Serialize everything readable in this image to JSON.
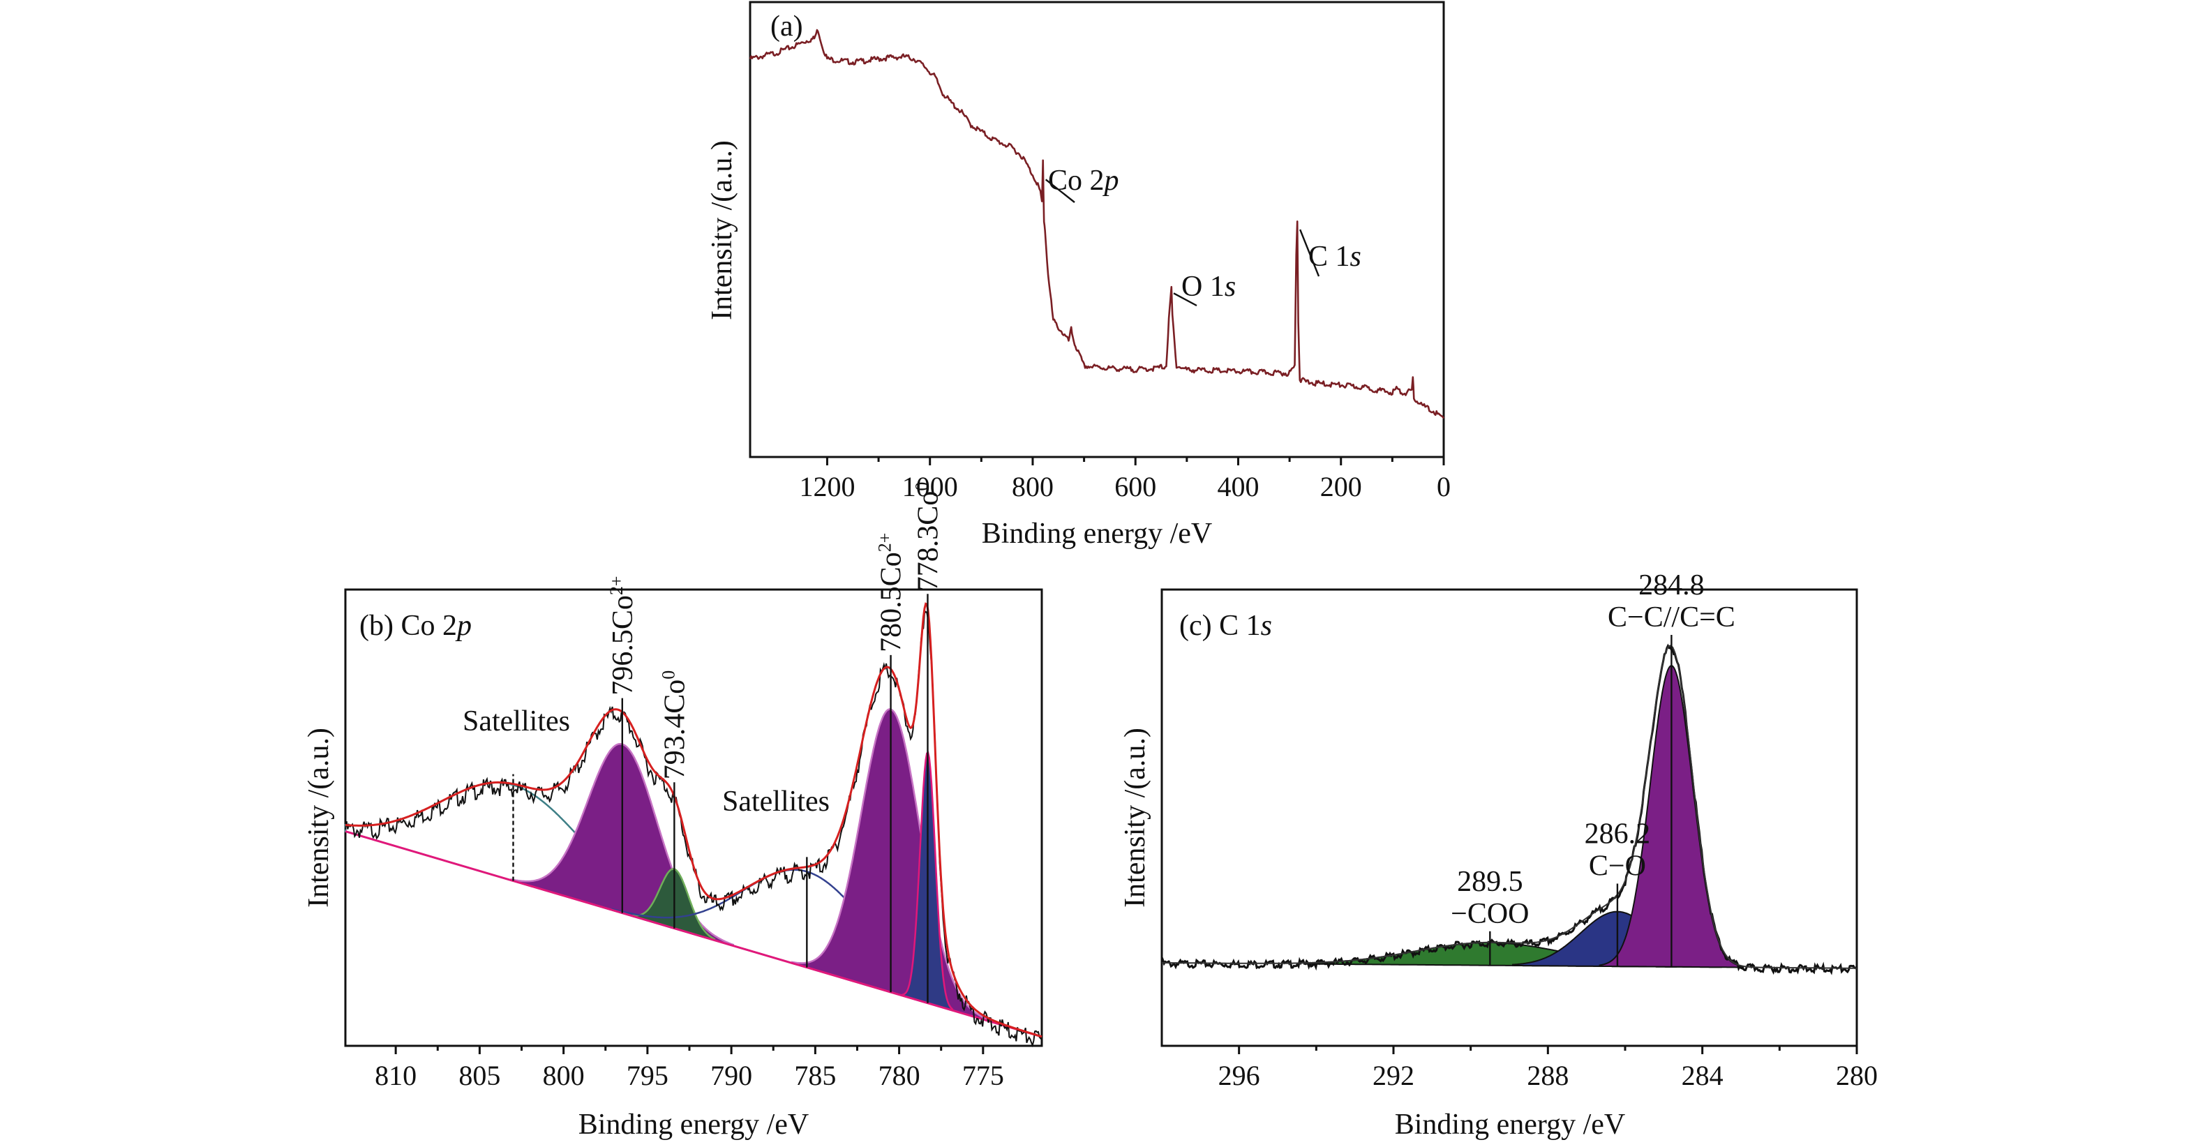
{
  "chart_data": [
    {
      "panel": "a",
      "type": "line",
      "tag": "(a)",
      "xlabel": "Binding energy /eV",
      "ylabel": "Intensity /(a.u.)",
      "xlim": [
        1350,
        0
      ],
      "ylim": [
        0,
        1
      ],
      "x_ticks": [
        1200,
        1000,
        800,
        600,
        400,
        200,
        0
      ],
      "y_ticks_labeled": false,
      "line_color": "#7a1f24",
      "series": [
        {
          "x": [
            1350,
            1300,
            1260,
            1240,
            1225,
            1218,
            1210,
            1200,
            1180,
            1150,
            1120,
            1080,
            1050,
            1030,
            1010,
            990,
            975,
            960,
            940,
            920,
            900,
            880,
            860,
            840,
            820,
            800,
            790,
            785,
            782,
            780,
            778,
            776,
            770,
            760,
            740,
            730,
            725,
            720,
            715,
            700,
            650,
            600,
            560,
            540,
            535,
            530,
            528,
            520,
            500,
            450,
            400,
            350,
            300,
            290,
            287,
            285,
            283,
            280,
            270,
            250,
            200,
            150,
            120,
            100,
            92,
            80,
            62,
            60,
            58,
            40,
            20,
            0
          ],
          "values": [
            0.875,
            0.888,
            0.905,
            0.915,
            0.92,
            0.94,
            0.905,
            0.875,
            0.872,
            0.868,
            0.872,
            0.878,
            0.88,
            0.875,
            0.858,
            0.835,
            0.8,
            0.78,
            0.76,
            0.73,
            0.715,
            0.7,
            0.69,
            0.68,
            0.66,
            0.62,
            0.6,
            0.58,
            0.56,
            0.65,
            0.52,
            0.5,
            0.4,
            0.3,
            0.27,
            0.255,
            0.28,
            0.255,
            0.24,
            0.2,
            0.195,
            0.192,
            0.195,
            0.2,
            0.3,
            0.37,
            0.31,
            0.2,
            0.192,
            0.19,
            0.188,
            0.186,
            0.184,
            0.2,
            0.45,
            0.52,
            0.3,
            0.17,
            0.166,
            0.162,
            0.158,
            0.152,
            0.145,
            0.142,
            0.15,
            0.14,
            0.145,
            0.17,
            0.13,
            0.112,
            0.1,
            0.085
          ]
        }
      ],
      "annotations": [
        {
          "text": "Co 2",
          "italic": "p",
          "x": 780
        },
        {
          "text": "O 1",
          "italic": "s",
          "x": 531
        },
        {
          "text": "C 1",
          "italic": "s",
          "x": 285
        }
      ]
    },
    {
      "panel": "b",
      "type": "area",
      "tag": "(b) Co 2",
      "tag_italic": "p",
      "xlabel": "Binding energy /eV",
      "ylabel": "Intensity /(a.u.)",
      "xlim": [
        813,
        771.5
      ],
      "ylim": [
        0,
        1
      ],
      "x_ticks": [
        810,
        805,
        800,
        795,
        790,
        785,
        780,
        775
      ],
      "y_ticks_labeled": false,
      "background": {
        "type": "linear",
        "start": [
          813,
          0.47
        ],
        "end": [
          771.5,
          0.02
        ],
        "color": "#e0187a"
      },
      "envelope_color": "#d62020",
      "raw_color": "#111111",
      "components": [
        {
          "name": "Satellites",
          "center": 803.0,
          "height": 0.21,
          "width": 4.3,
          "fill": "none",
          "stroke": "#3e7f86"
        },
        {
          "name": "796.5Co2+",
          "center": 796.5,
          "height": 0.37,
          "width": 2.05,
          "fill": "#7b1f86",
          "stroke": "#c774c4"
        },
        {
          "name": "793.4Co0",
          "center": 793.4,
          "height": 0.13,
          "width": 0.85,
          "fill": "#2d5a3c",
          "stroke": "#6fae5a"
        },
        {
          "name": "Satellites",
          "center": 785.5,
          "height": 0.21,
          "width": 3.8,
          "fill": "none",
          "stroke": "#33418f"
        },
        {
          "name": "780.5Co2+",
          "center": 780.5,
          "height": 0.62,
          "width": 1.75,
          "fill": "#7b1f86",
          "stroke": "#c774c4"
        },
        {
          "name": "778.3Co0",
          "center": 778.3,
          "height": 0.55,
          "width": 0.45,
          "fill": "#2f3a85",
          "stroke": "#e0187a"
        }
      ],
      "markers": [
        {
          "x": 803.0,
          "label": "Satellites",
          "style": "dashed"
        },
        {
          "x": 796.5,
          "label": "796.5Co",
          "sup": "2+",
          "rotated": true
        },
        {
          "x": 793.4,
          "label": "793.4Co",
          "sup": "0",
          "rotated": true
        },
        {
          "x": 785.5,
          "label": "Satellites",
          "style": "solid"
        },
        {
          "x": 780.5,
          "label": "780.5Co",
          "sup": "2+",
          "rotated": true
        },
        {
          "x": 778.3,
          "label": "778.3Co",
          "sup": "0",
          "rotated": true
        }
      ]
    },
    {
      "panel": "c",
      "type": "area",
      "tag": "(c)  C 1",
      "tag_italic": "s",
      "xlabel": "Binding energy /eV",
      "ylabel": "Intensity /(a.u.)",
      "xlim": [
        298,
        280
      ],
      "ylim": [
        0,
        1
      ],
      "x_ticks": [
        296,
        292,
        288,
        284,
        280
      ],
      "y_ticks_labeled": false,
      "baseline": 0.17,
      "components": [
        {
          "name": "289.5 −COO",
          "center": 289.5,
          "height": 0.05,
          "width": 1.9,
          "fill": "#2f7a2f",
          "stroke": "#111111"
        },
        {
          "name": "286.2 C−O",
          "center": 286.2,
          "height": 0.12,
          "width": 0.95,
          "fill": "#2a3585",
          "stroke": "#111111"
        },
        {
          "name": "284.8 C−C//C=C",
          "center": 284.8,
          "height": 0.66,
          "width": 0.55,
          "fill": "#7b1f86",
          "stroke": "#111111"
        }
      ],
      "markers": [
        {
          "x": 289.5,
          "lines": [
            "289.5",
            "−COO"
          ]
        },
        {
          "x": 286.2,
          "lines": [
            "286.2",
            "C−O"
          ]
        },
        {
          "x": 284.8,
          "lines": [
            "284.8",
            "C−C//C=C"
          ]
        }
      ]
    }
  ]
}
